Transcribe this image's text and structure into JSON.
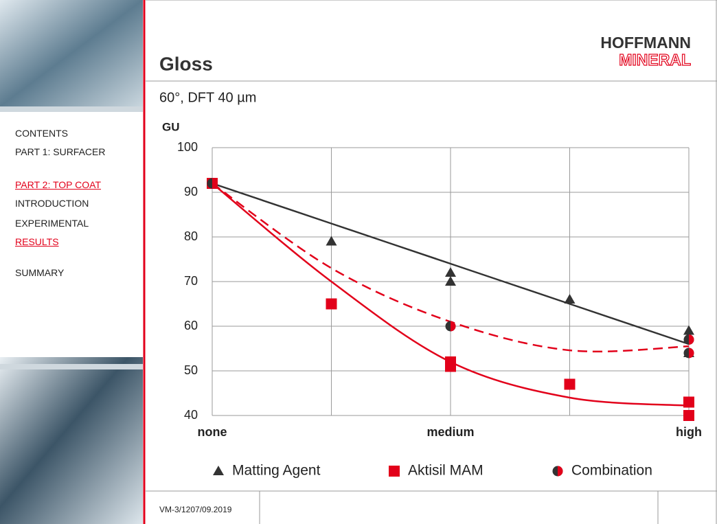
{
  "header": {
    "title": "Gloss",
    "logo": [
      "HOFFMANN",
      "MINERAL"
    ]
  },
  "sidebar": {
    "nav": [
      {
        "label": "CONTENTS",
        "active": false
      },
      {
        "label": "PART 1: SURFACER",
        "active": false
      },
      {
        "label": "PART 2: TOP COAT",
        "active": true
      },
      {
        "label": "INTRODUCTION",
        "active": false
      },
      {
        "label": "EXPERIMENTAL",
        "active": false
      },
      {
        "label": "RESULTS",
        "active": true
      },
      {
        "label": "SUMMARY",
        "active": false
      }
    ]
  },
  "chart_data": {
    "type": "scatter",
    "subtitle": "60°, DFT 40 µm",
    "y_label": "GU",
    "xlim": [
      0,
      4
    ],
    "xticks": [
      {
        "value": 0,
        "label": "none"
      },
      {
        "value": 1,
        "label": null
      },
      {
        "value": 2,
        "label": "medium"
      },
      {
        "value": 3,
        "label": null
      },
      {
        "value": 4,
        "label": "high"
      }
    ],
    "ylim": [
      40,
      100
    ],
    "yticks": [
      40,
      50,
      60,
      70,
      80,
      90,
      100
    ],
    "grid": true,
    "legend": "bottom",
    "trend_x": [
      0,
      1,
      2,
      3,
      4
    ],
    "series": [
      {
        "name": "Matting Agent",
        "marker": "triangle",
        "color": "#333333",
        "line_color": "#333333",
        "line_style": "solid",
        "x": [
          0,
          1,
          2,
          2,
          3,
          4,
          4
        ],
        "values": [
          92,
          79,
          72,
          70,
          66,
          59,
          54
        ],
        "trend_values": [
          92,
          83,
          74,
          65,
          56
        ]
      },
      {
        "name": "Aktisil MAM",
        "marker": "square",
        "color": "#e2001a",
        "line_color": "#e2001a",
        "line_style": "solid",
        "x": [
          0,
          1,
          2,
          2,
          3,
          4,
          4
        ],
        "values": [
          92,
          65,
          52,
          51,
          47,
          43,
          40
        ],
        "trend_values": [
          92,
          70,
          52,
          44,
          42.2
        ]
      },
      {
        "name": "Combination",
        "marker": "circle",
        "color": "#333333",
        "line_color": "#e2001a",
        "line_style": "dashed",
        "x": [
          0,
          2,
          4,
          4
        ],
        "values": [
          92,
          60,
          57,
          54
        ],
        "trend_values": [
          92,
          73,
          61,
          54.6,
          55.5
        ]
      }
    ]
  },
  "footer": {
    "code": "VM-3/1207/09.2019"
  }
}
